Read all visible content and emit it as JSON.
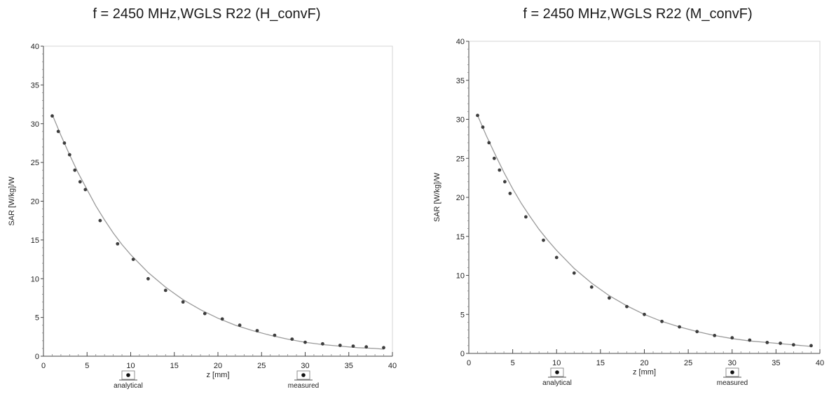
{
  "chart_data": [
    {
      "type": "scatter",
      "title": "f = 2450 MHz,WGLS R22 (H_convF)",
      "xlabel": "z [mm]",
      "ylabel": "SAR [W/kg]/W",
      "xlim": [
        0,
        40
      ],
      "ylim": [
        0,
        40
      ],
      "xticks": [
        "0",
        "5",
        "10",
        "15",
        "20",
        "25",
        "30",
        "35",
        "40"
      ],
      "yticks": [
        "0",
        "5",
        "10",
        "15",
        "20",
        "25",
        "30",
        "35",
        "40"
      ],
      "grid": false,
      "legend": [
        "analytical",
        "measured"
      ],
      "legend_position": "bottom",
      "series": [
        {
          "name": "analytical",
          "x": [
            1,
            2,
            3,
            4,
            5,
            6,
            7,
            8,
            9,
            10,
            12,
            14,
            16,
            18,
            20,
            22,
            24,
            26,
            28,
            30,
            32,
            34,
            36,
            38,
            39
          ],
          "y": [
            31.2,
            28.5,
            26.0,
            23.6,
            21.5,
            19.4,
            17.6,
            15.9,
            14.4,
            13.1,
            10.8,
            8.9,
            7.3,
            6.0,
            4.9,
            4.0,
            3.3,
            2.7,
            2.2,
            1.8,
            1.5,
            1.3,
            1.1,
            1.0,
            0.9
          ]
        },
        {
          "name": "measured",
          "x": [
            1.0,
            1.7,
            2.4,
            3.0,
            3.6,
            4.2,
            4.8,
            6.5,
            8.5,
            10.3,
            12.0,
            14.0,
            16.0,
            18.5,
            20.5,
            22.5,
            24.5,
            26.5,
            28.5,
            30.0,
            32.0,
            34.0,
            35.5,
            37.0,
            39.0
          ],
          "y": [
            31.0,
            29.0,
            27.5,
            26.0,
            24.0,
            22.5,
            21.5,
            17.5,
            14.5,
            12.5,
            10.0,
            8.5,
            7.0,
            5.5,
            4.8,
            4.0,
            3.3,
            2.7,
            2.2,
            1.8,
            1.6,
            1.4,
            1.3,
            1.2,
            1.1
          ]
        }
      ]
    },
    {
      "type": "scatter",
      "title": "f = 2450 MHz,WGLS R22 (M_convF)",
      "xlabel": "z [mm]",
      "ylabel": "SAR [W/kg]/W",
      "xlim": [
        0,
        40
      ],
      "ylim": [
        0,
        40
      ],
      "xticks": [
        "0",
        "5",
        "10",
        "15",
        "20",
        "25",
        "30",
        "35",
        "40"
      ],
      "yticks": [
        "0",
        "5",
        "10",
        "15",
        "20",
        "25",
        "30",
        "35",
        "40"
      ],
      "grid": false,
      "legend": [
        "analytical",
        "measured"
      ],
      "legend_position": "bottom",
      "series": [
        {
          "name": "analytical",
          "x": [
            1,
            2,
            3,
            4,
            5,
            6,
            7,
            8,
            9,
            10,
            12,
            14,
            16,
            18,
            20,
            22,
            24,
            26,
            28,
            30,
            32,
            34,
            36,
            38,
            39
          ],
          "y": [
            30.5,
            27.9,
            25.5,
            23.2,
            21.1,
            19.2,
            17.5,
            15.9,
            14.5,
            13.2,
            10.9,
            9.0,
            7.4,
            6.1,
            5.0,
            4.1,
            3.4,
            2.8,
            2.3,
            1.9,
            1.6,
            1.4,
            1.2,
            1.0,
            0.9
          ]
        },
        {
          "name": "measured",
          "x": [
            1.0,
            1.6,
            2.3,
            2.9,
            3.5,
            4.1,
            4.7,
            6.5,
            8.5,
            10.0,
            12.0,
            14.0,
            16.0,
            18.0,
            20.0,
            22.0,
            24.0,
            26.0,
            28.0,
            30.0,
            32.0,
            34.0,
            35.5,
            37.0,
            39.0
          ],
          "y": [
            30.5,
            29.0,
            27.0,
            25.0,
            23.5,
            22.0,
            20.5,
            17.5,
            14.5,
            12.3,
            10.3,
            8.5,
            7.1,
            6.0,
            5.0,
            4.1,
            3.4,
            2.8,
            2.3,
            2.0,
            1.7,
            1.4,
            1.3,
            1.1,
            1.0
          ]
        }
      ]
    }
  ]
}
